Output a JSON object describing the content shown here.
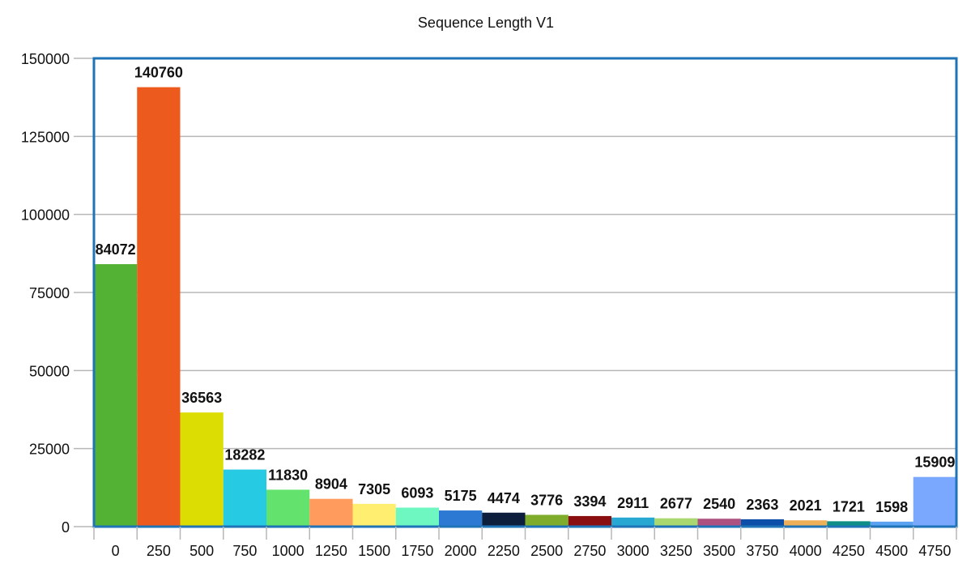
{
  "chart_data": {
    "type": "bar",
    "title": "Sequence Length V1",
    "xlabel": "",
    "ylabel": "",
    "categories": [
      "0",
      "250",
      "500",
      "750",
      "1000",
      "1250",
      "1500",
      "1750",
      "2000",
      "2250",
      "2500",
      "2750",
      "3000",
      "3250",
      "3500",
      "3750",
      "4000",
      "4250",
      "4500",
      "4750"
    ],
    "values": [
      84072,
      140760,
      36563,
      18282,
      11830,
      8904,
      7305,
      6093,
      5175,
      4474,
      3776,
      3394,
      2911,
      2677,
      2540,
      2363,
      2021,
      1721,
      1598,
      15909
    ],
    "data_labels": [
      "84072",
      "140760",
      "36563",
      "18282",
      "11830",
      "8904",
      "7305",
      "6093",
      "5175",
      "4474",
      "3776",
      "3394",
      "2911",
      "2677",
      "2540",
      "2363",
      "2021",
      "1721",
      "1598",
      "15909"
    ],
    "colors": [
      "#53b234",
      "#ec5a1e",
      "#dcdd03",
      "#27cae3",
      "#63e36e",
      "#ff9b5c",
      "#ffee6f",
      "#6ff7c2",
      "#2c79d3",
      "#0c1e3b",
      "#7fad2b",
      "#8a0d0f",
      "#27a8d2",
      "#a8d86f",
      "#ac5180",
      "#0d4ea8",
      "#eeaf59",
      "#0d8e86",
      "#5ba2f0",
      "#7aa8ff"
    ],
    "ylim": [
      0,
      150000
    ],
    "yticks": [
      0,
      25000,
      50000,
      75000,
      100000,
      125000,
      150000
    ],
    "ytick_labels": [
      "0",
      "25000",
      "50000",
      "75000",
      "100000",
      "125000",
      "150000"
    ],
    "grid": true,
    "legend": "none"
  }
}
